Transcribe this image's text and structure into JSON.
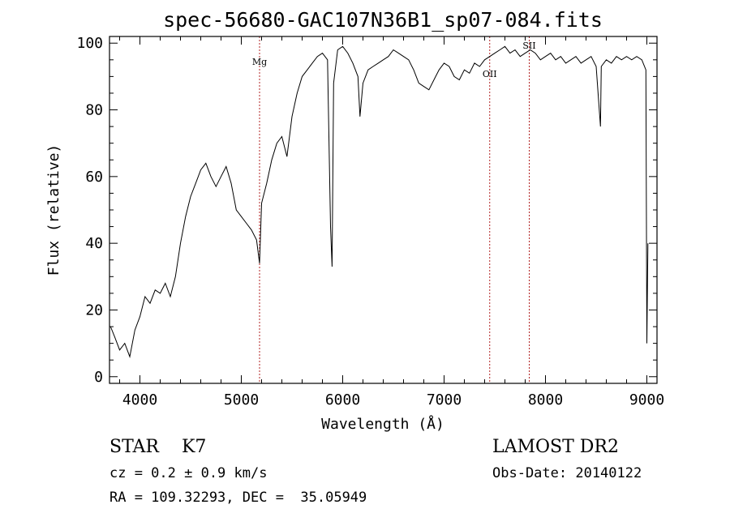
{
  "chart_data": {
    "type": "line",
    "title": "spec-56680-GAC107N36B1_sp07-084.fits",
    "xlabel": "Wavelength (Å)",
    "ylabel": "Flux (relative)",
    "xlim": [
      3700,
      9100
    ],
    "ylim": [
      -2,
      102
    ],
    "xticks": [
      4000,
      5000,
      6000,
      7000,
      8000,
      9000
    ],
    "yticks": [
      0,
      20,
      40,
      60,
      80,
      100
    ],
    "grid": false,
    "line_color": "#000000",
    "marker_color": "#b22222",
    "line_markers": [
      {
        "label": "Mg",
        "x": 5180
      },
      {
        "label": "OII",
        "x": 7450
      },
      {
        "label": "SII",
        "x": 7840
      }
    ],
    "x": [
      3710,
      3750,
      3800,
      3850,
      3900,
      3950,
      4000,
      4050,
      4100,
      4150,
      4200,
      4250,
      4300,
      4350,
      4400,
      4450,
      4500,
      4550,
      4600,
      4650,
      4700,
      4750,
      4800,
      4850,
      4900,
      4950,
      5000,
      5050,
      5100,
      5150,
      5180,
      5200,
      5250,
      5300,
      5350,
      5400,
      5450,
      5500,
      5550,
      5600,
      5650,
      5700,
      5750,
      5800,
      5850,
      5880,
      5895,
      5910,
      5950,
      6000,
      6050,
      6100,
      6150,
      6170,
      6200,
      6250,
      6300,
      6350,
      6400,
      6450,
      6500,
      6550,
      6600,
      6650,
      6700,
      6750,
      6800,
      6850,
      6900,
      6950,
      7000,
      7050,
      7100,
      7150,
      7200,
      7250,
      7300,
      7350,
      7400,
      7450,
      7500,
      7550,
      7600,
      7650,
      7700,
      7750,
      7800,
      7850,
      7900,
      7950,
      8000,
      8050,
      8100,
      8150,
      8200,
      8250,
      8300,
      8350,
      8400,
      8450,
      8500,
      8542,
      8550,
      8600,
      8650,
      8700,
      8750,
      8800,
      8850,
      8900,
      8950,
      8990,
      9000,
      9010
    ],
    "y": [
      15,
      12,
      8,
      10,
      6,
      14,
      18,
      24,
      22,
      26,
      25,
      28,
      24,
      30,
      40,
      48,
      54,
      58,
      62,
      64,
      60,
      57,
      60,
      63,
      58,
      50,
      48,
      46,
      44,
      41,
      34,
      52,
      58,
      65,
      70,
      72,
      66,
      78,
      85,
      90,
      92,
      94,
      96,
      97,
      95,
      45,
      33,
      88,
      98,
      99,
      97,
      94,
      90,
      78,
      88,
      92,
      93,
      94,
      95,
      96,
      98,
      97,
      96,
      95,
      92,
      88,
      87,
      86,
      89,
      92,
      94,
      93,
      90,
      89,
      92,
      91,
      94,
      93,
      95,
      96,
      97,
      98,
      99,
      97,
      98,
      96,
      97,
      98,
      97,
      95,
      96,
      97,
      95,
      96,
      94,
      95,
      96,
      94,
      95,
      96,
      93,
      75,
      93,
      95,
      94,
      96,
      95,
      96,
      95,
      96,
      95,
      92,
      10,
      40
    ]
  },
  "info": {
    "left_line1_class": "STAR",
    "left_line1_subclass": "K7",
    "left_line2": "cz = 0.2 ± 0.9 km/s",
    "left_line3": "RA = 109.32293, DEC =  35.05949",
    "right_line1": "LAMOST DR2",
    "right_line2": "Obs-Date: 20140122"
  }
}
